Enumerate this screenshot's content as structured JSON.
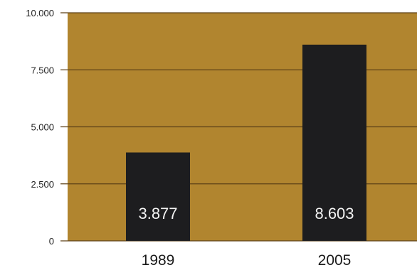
{
  "chart_data": {
    "type": "bar",
    "categories": [
      "1989",
      "2005"
    ],
    "values": [
      3877,
      8603
    ],
    "data_labels": [
      "3.877",
      "8.603"
    ],
    "yticks": [
      0,
      2500,
      5000,
      7500,
      10000
    ],
    "ytick_labels": [
      "0",
      "2.500",
      "5.000",
      "7.500",
      "10.000"
    ],
    "ylim": [
      0,
      10000
    ],
    "grid": true,
    "title": "",
    "xlabel": "",
    "ylabel": "",
    "colors": {
      "plot_background": "#b1852f",
      "bar": "#1d1d1f",
      "gridline": "#5e4218",
      "data_label": "#f2f2f2"
    }
  }
}
